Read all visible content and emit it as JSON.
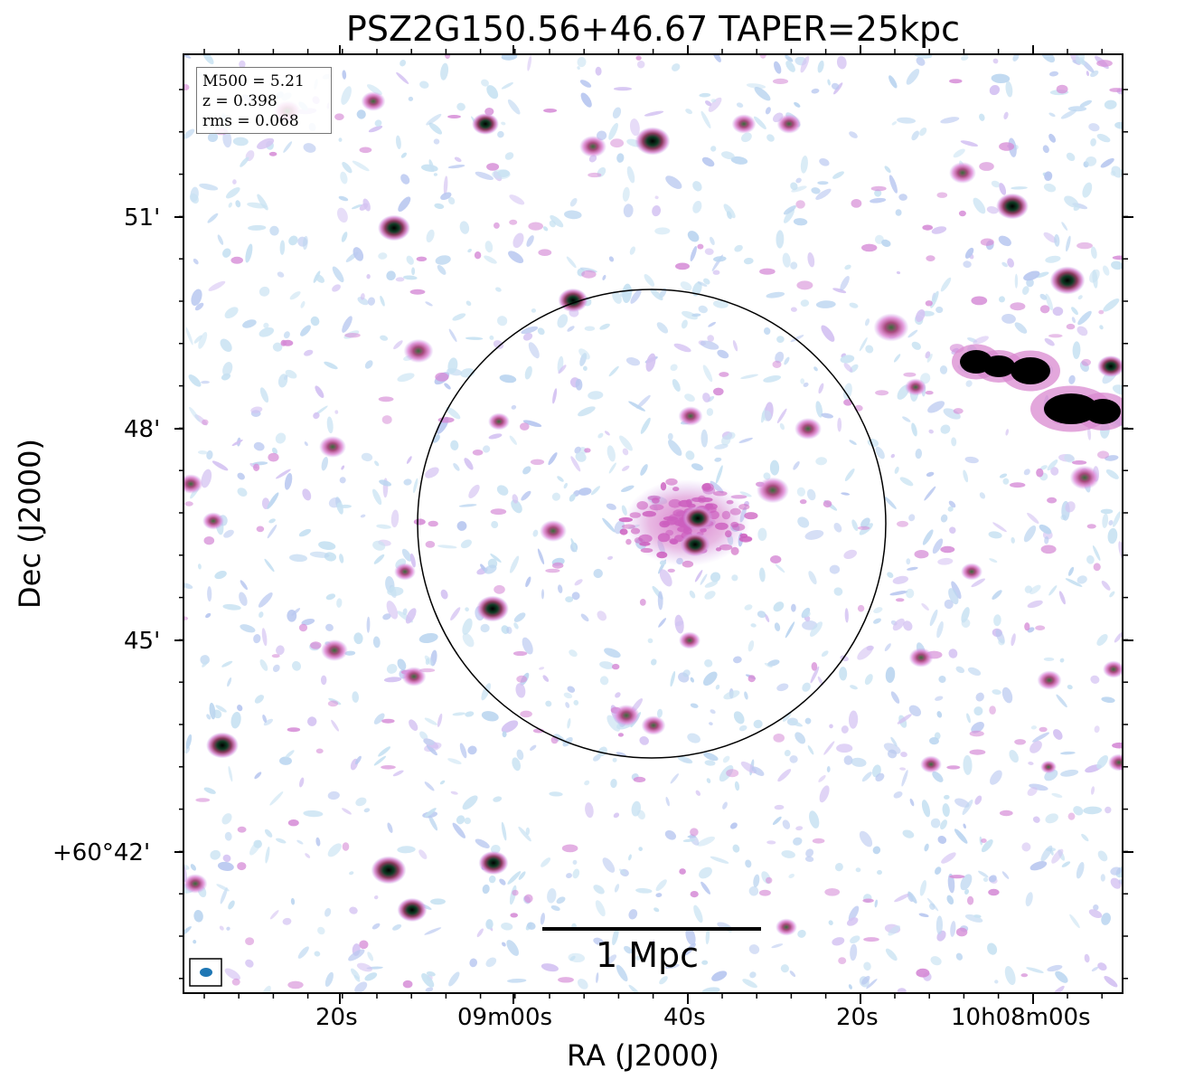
{
  "title": "PSZ2G150.56+46.67 TAPER=25kpc",
  "axes": {
    "xlabel": "RA (J2000)",
    "ylabel": "Dec (J2000)",
    "x_ticks": [
      "20s",
      "09m00s",
      "40s",
      "20s",
      "10h08m00s"
    ],
    "y_ticks": [
      "51'",
      "48'",
      "45'",
      "+60°42'"
    ]
  },
  "info": {
    "m500": "M500 = 5.21",
    "z": "z = 0.398",
    "rms": "rms = 0.068"
  },
  "scalebar": {
    "label": "1 Mpc"
  },
  "colors": {
    "noise_light": "#c8e2f2",
    "noise_mid": "#b9c8f0",
    "source_halo": "#d98ad0",
    "source_mid": "#b0407a",
    "source_core": "#1e5c3a",
    "source_peak": "#000000",
    "beam": "#1f77b4"
  }
}
